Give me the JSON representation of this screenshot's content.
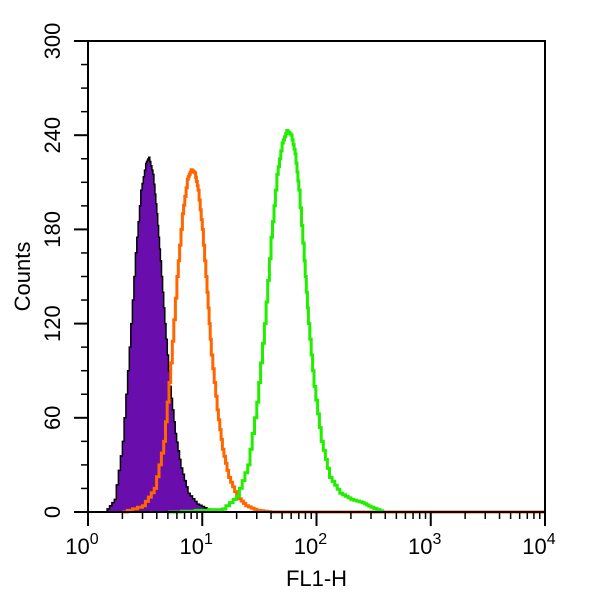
{
  "chart_data": {
    "type": "area",
    "xlabel": "FL1-H",
    "ylabel": "Counts",
    "x_scale": "log",
    "xlim": [
      1,
      10000
    ],
    "ylim": [
      0,
      300
    ],
    "x_ticks": [
      {
        "value": 1,
        "base": "10",
        "exp": "0"
      },
      {
        "value": 10,
        "base": "10",
        "exp": "1"
      },
      {
        "value": 100,
        "base": "10",
        "exp": "2"
      },
      {
        "value": 1000,
        "base": "10",
        "exp": "3"
      },
      {
        "value": 10000,
        "base": "10",
        "exp": "4"
      }
    ],
    "y_ticks": [
      0,
      60,
      120,
      180,
      240,
      300
    ],
    "grid": false,
    "legend": "none",
    "series": [
      {
        "color": "#6a0dad",
        "fill": true,
        "outline_color": "#000000",
        "x": [
          1.4,
          1.7,
          2.0,
          2.3,
          2.6,
          2.9,
          3.2,
          3.4,
          3.7,
          4.0,
          4.3,
          4.7,
          5.2,
          5.8,
          6.5,
          7.5,
          9.0,
          11.0,
          13.0,
          16.0
        ],
        "y": [
          0,
          8,
          45,
          105,
          165,
          205,
          222,
          226,
          215,
          190,
          160,
          120,
          80,
          50,
          28,
          12,
          5,
          2,
          1,
          0
        ]
      },
      {
        "color": "#ff6600",
        "fill": false,
        "x": [
          2.0,
          3.0,
          3.8,
          4.6,
          5.3,
          6.0,
          6.7,
          7.4,
          8.0,
          8.6,
          9.2,
          10.0,
          11.0,
          12.0,
          13.5,
          15.0,
          17.0,
          20.0,
          24.0,
          30.0,
          40.0,
          10000
        ],
        "y": [
          0,
          4,
          15,
          45,
          95,
          150,
          190,
          212,
          218,
          216,
          205,
          180,
          140,
          100,
          65,
          40,
          22,
          10,
          4,
          1,
          0,
          0
        ]
      },
      {
        "color": "#22ee00",
        "fill": false,
        "x": [
          5.0,
          15.0,
          20.0,
          25.0,
          30.0,
          35.0,
          40.0,
          45.0,
          50.0,
          55.0,
          60.0,
          65.0,
          70.0,
          78.0,
          85.0,
          95.0,
          110.0,
          130.0,
          160.0,
          200.0,
          250.0,
          300.0,
          380.0
        ],
        "y": [
          0,
          2,
          10,
          30,
          70,
          120,
          175,
          215,
          235,
          243,
          240,
          228,
          205,
          160,
          120,
          80,
          45,
          22,
          12,
          8,
          6,
          3,
          0
        ]
      }
    ]
  }
}
